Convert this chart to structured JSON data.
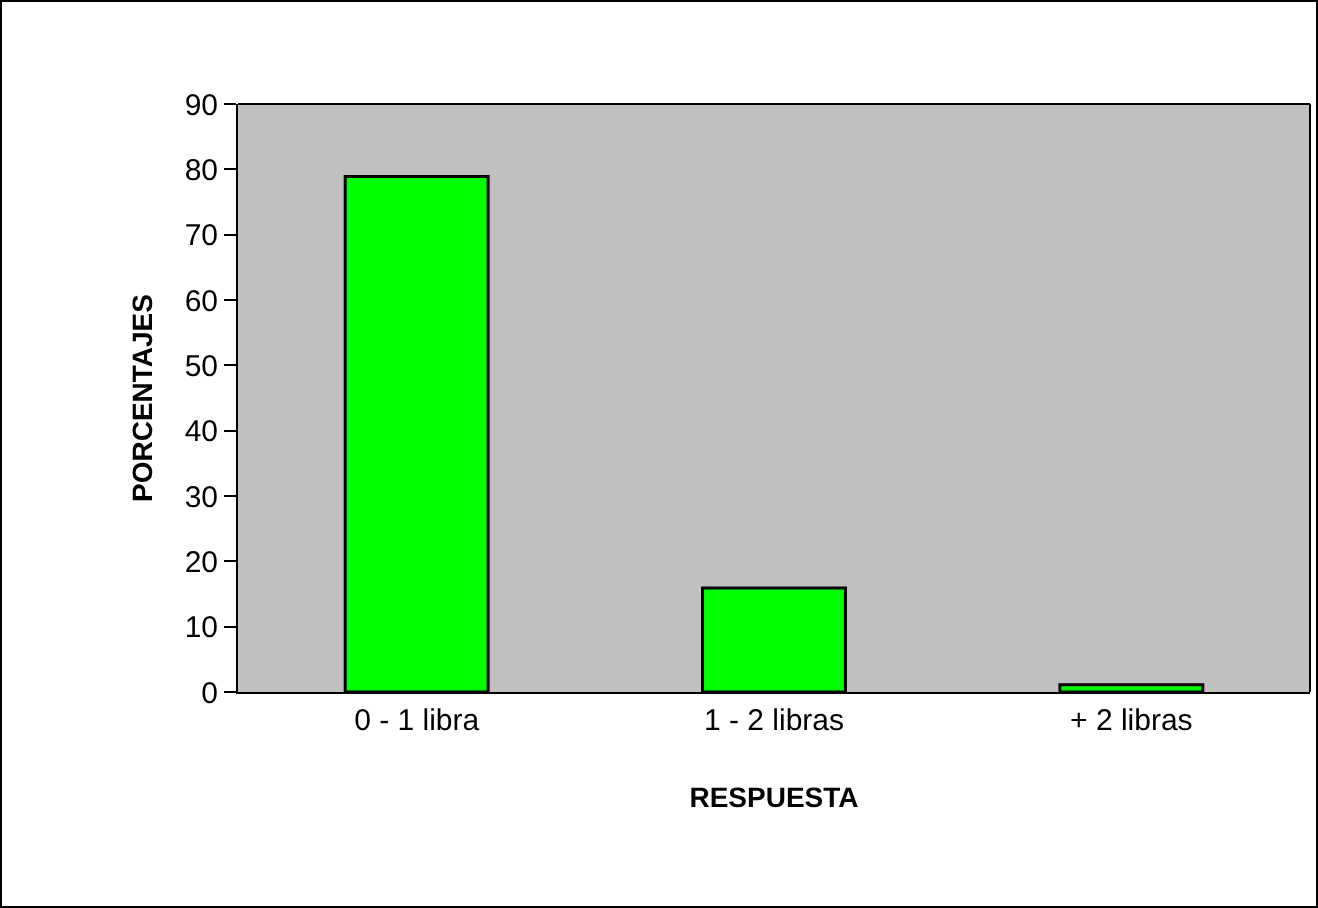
{
  "chart_data": {
    "type": "bar",
    "xlabel": "RESPUESTA",
    "ylabel": "PORCENTAJES",
    "categories": [
      "0 - 1 libra",
      "1 - 2 libras",
      "+ 2 libras"
    ],
    "values": [
      78.9,
      15.9,
      1.1
    ],
    "color": "#00ff00",
    "ylim": [
      0,
      90
    ],
    "yticks": [
      0,
      10,
      20,
      30,
      40,
      50,
      60,
      70,
      80,
      90
    ],
    "grid": false,
    "legend": false
  }
}
